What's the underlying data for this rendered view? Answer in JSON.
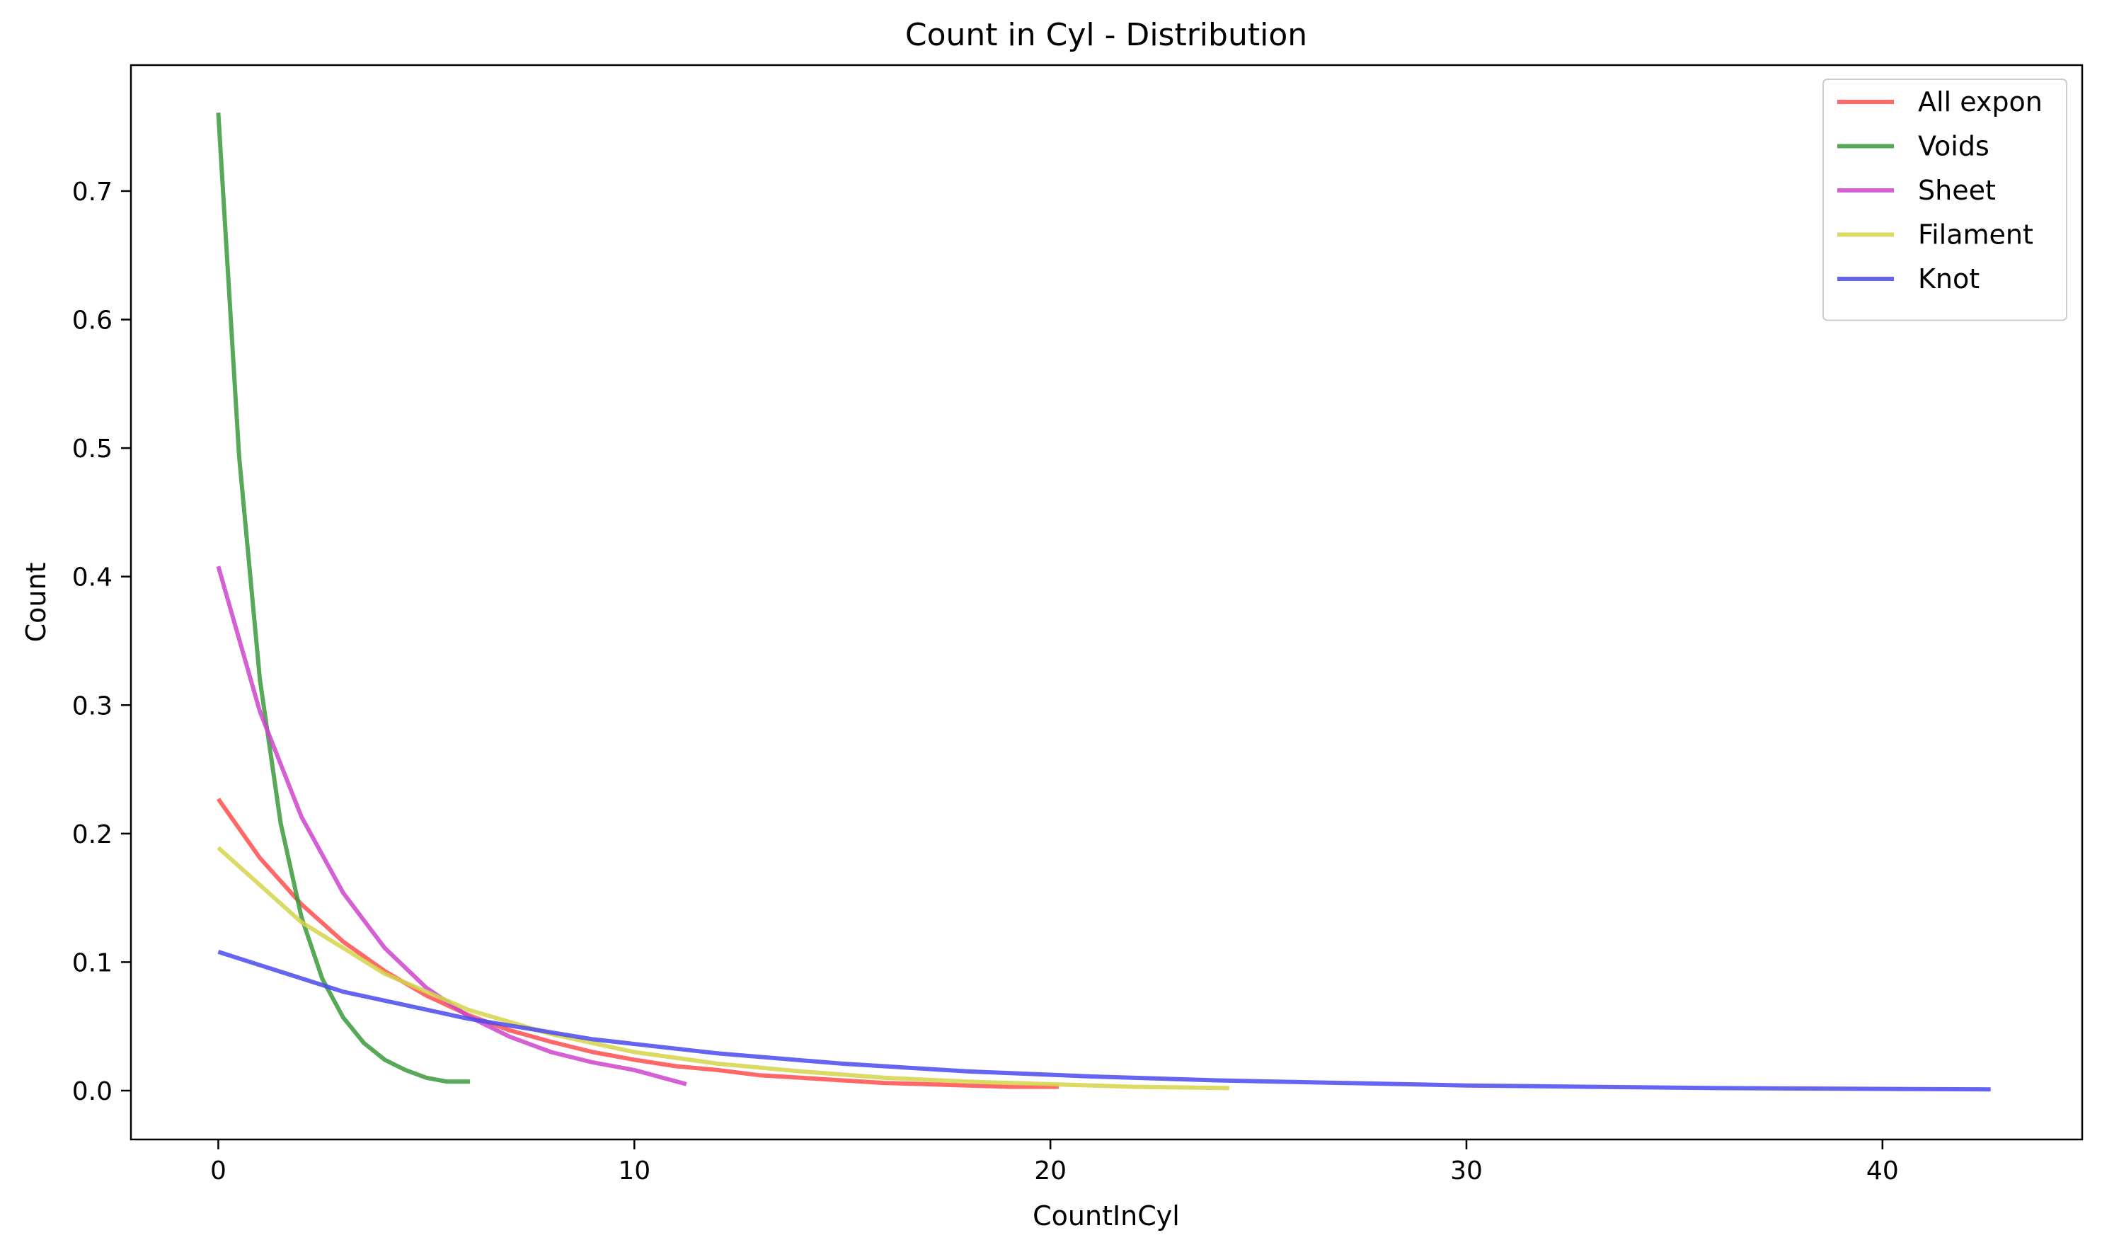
{
  "chart_data": {
    "type": "line",
    "title": "Count in Cyl - Distribution",
    "xlabel": "CountInCyl",
    "ylabel": "Count",
    "xlim": [
      -2.1,
      44.8
    ],
    "ylim": [
      -0.038,
      0.798
    ],
    "xticks": [
      0,
      10,
      20,
      30,
      40
    ],
    "xtick_labels": [
      "0",
      "10",
      "20",
      "30",
      "40"
    ],
    "yticks": [
      0.0,
      0.1,
      0.2,
      0.3,
      0.4,
      0.5,
      0.6,
      0.7
    ],
    "ytick_labels": [
      "0.0",
      "0.1",
      "0.2",
      "0.3",
      "0.4",
      "0.5",
      "0.6",
      "0.7"
    ],
    "grid": false,
    "legend_position": "upper-right",
    "series": [
      {
        "name": "All expon",
        "color": "#ff4d4d",
        "x": [
          0,
          1,
          2,
          3,
          4,
          5,
          6,
          7,
          8,
          9,
          10,
          11,
          12,
          13,
          14,
          15,
          16,
          17,
          18,
          19,
          20.2
        ],
        "y": [
          0.227,
          0.181,
          0.145,
          0.116,
          0.093,
          0.074,
          0.059,
          0.047,
          0.038,
          0.03,
          0.024,
          0.019,
          0.016,
          0.012,
          0.01,
          0.008,
          0.006,
          0.005,
          0.004,
          0.003,
          0.003
        ]
      },
      {
        "name": "Voids",
        "color": "#3a9a3a",
        "x": [
          0,
          0.5,
          1,
          1.5,
          2,
          2.5,
          3,
          3.5,
          4,
          4.5,
          5,
          5.5,
          6.05
        ],
        "y": [
          0.761,
          0.494,
          0.32,
          0.208,
          0.135,
          0.087,
          0.057,
          0.037,
          0.024,
          0.016,
          0.01,
          0.007,
          0.007
        ]
      },
      {
        "name": "Sheet",
        "color": "#cc44cc",
        "x": [
          0,
          1,
          2,
          3,
          4,
          5,
          6,
          7,
          8,
          9,
          10,
          11.25
        ],
        "y": [
          0.408,
          0.295,
          0.213,
          0.154,
          0.111,
          0.08,
          0.058,
          0.042,
          0.03,
          0.022,
          0.016,
          0.005
        ]
      },
      {
        "name": "Filament",
        "color": "#d4d44a",
        "x": [
          0,
          2,
          4,
          6,
          8,
          10,
          12,
          14,
          16,
          18,
          20,
          22,
          24.3
        ],
        "y": [
          0.189,
          0.131,
          0.091,
          0.063,
          0.044,
          0.03,
          0.021,
          0.015,
          0.01,
          0.007,
          0.005,
          0.003,
          0.002
        ]
      },
      {
        "name": "Knot",
        "color": "#4a4af0",
        "x": [
          0,
          3,
          6,
          9,
          12,
          15,
          18,
          21,
          24,
          27,
          30,
          33,
          36,
          39,
          42.6
        ],
        "y": [
          0.108,
          0.077,
          0.056,
          0.04,
          0.029,
          0.021,
          0.015,
          0.011,
          0.008,
          0.006,
          0.004,
          0.003,
          0.002,
          0.0015,
          0.001
        ]
      }
    ]
  }
}
